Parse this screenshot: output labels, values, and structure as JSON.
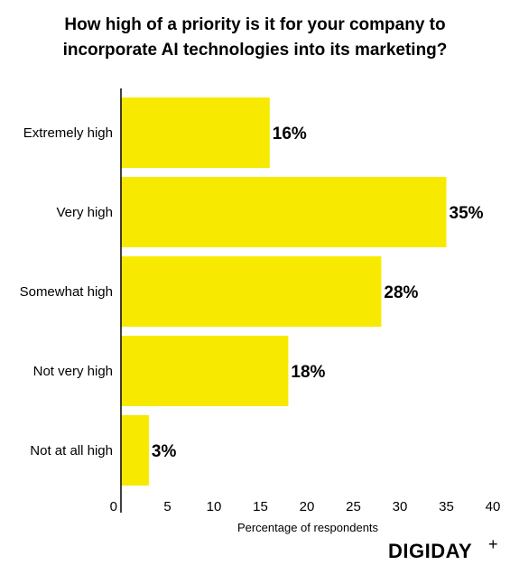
{
  "chart_data": {
    "type": "bar",
    "orientation": "horizontal",
    "title_lines": [
      "How high of a priority is it for your company to",
      "incorporate AI technologies into its marketing?"
    ],
    "xlabel": "Percentage of respondents",
    "ylabel": "",
    "categories": [
      "Extremely high",
      "Very high",
      "Somewhat high",
      "Not very high",
      "Not at all high"
    ],
    "values": [
      16,
      35,
      28,
      18,
      3
    ],
    "data_labels": [
      "16%",
      "35%",
      "28%",
      "18%",
      "3%"
    ],
    "xlim": [
      0,
      40
    ],
    "xticks": [
      0,
      5,
      10,
      15,
      20,
      25,
      30,
      35,
      40
    ],
    "grid": false,
    "bar_color": "#f7ea00"
  },
  "brand": {
    "name": "DIGIDAY",
    "mark": "+"
  }
}
